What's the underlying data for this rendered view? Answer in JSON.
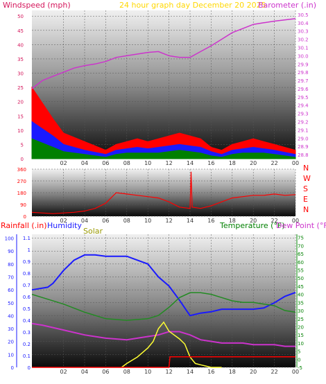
{
  "header": {
    "windspeed_label": "Windspeed (mph)",
    "title": "24 hour graph day   December 20 2025",
    "barometer_label": "Barometer (.in)"
  },
  "compass": [
    "N",
    "W",
    "S",
    "E",
    "N"
  ],
  "bottom_labels": {
    "rainfall": "Rainfall (.in)",
    "humidity": "Humidity",
    "solar": "Solar",
    "temperature": "Temperature (°F)",
    "dewpoint": "Dew Point (°F)"
  },
  "colors": {
    "windspeed_label": "#d4145a",
    "title": "#ffd700",
    "barometer": "#cc33cc",
    "wind_gust": "#ff0000",
    "wind_avg": "#1a1aff",
    "wind_low": "#008000",
    "direction": "#ff0000",
    "humidity": "#1a1aff",
    "temperature": "#228b22",
    "dewpoint": "#cc33cc",
    "solar": "#ffff33",
    "rainfall": "#ff0000",
    "rain_axis": "#1a1aff",
    "temp_axis": "#008000"
  },
  "chart_data": [
    {
      "type": "line",
      "title": "24 hour graph day   December 20 2025",
      "x_ticks": [
        "02",
        "04",
        "06",
        "08",
        "10",
        "12",
        "14",
        "16",
        "18",
        "20",
        "22",
        "00"
      ],
      "y_left_label": "Windspeed (mph)",
      "y_left_ticks": [
        0,
        5,
        10,
        15,
        20,
        25,
        30,
        35,
        40,
        45,
        50
      ],
      "y_right_label": "Barometer (.in)",
      "y_right_ticks": [
        28.8,
        28.9,
        29.0,
        29.1,
        29.2,
        29.3,
        29.4,
        29.5,
        29.6,
        29.7,
        29.8,
        29.9,
        30.0,
        30.1,
        30.2,
        30.3,
        30.4,
        30.5
      ],
      "y_right_range": [
        28.75,
        30.55
      ],
      "grid": true,
      "series": [
        {
          "name": "gust",
          "axis": "left",
          "x": [
            23,
            1,
            2,
            4,
            6,
            7,
            8,
            9,
            10,
            11,
            12,
            13,
            14,
            15,
            16,
            17,
            18,
            19,
            20,
            21,
            22,
            0
          ],
          "values": [
            25,
            14,
            9,
            6,
            3,
            5,
            6,
            7,
            6,
            7,
            8,
            9,
            8,
            7,
            4,
            3,
            5,
            6,
            7,
            6,
            5,
            3
          ]
        },
        {
          "name": "avg",
          "axis": "left",
          "x": [
            23,
            1,
            2,
            4,
            6,
            7,
            8,
            9,
            10,
            11,
            12,
            13,
            14,
            15,
            16,
            17,
            18,
            19,
            20,
            21,
            22,
            0
          ],
          "values": [
            13,
            8,
            5,
            3,
            1.5,
            3,
            3.5,
            4,
            3.5,
            4,
            4.5,
            5,
            4.5,
            4,
            2.5,
            1.5,
            3,
            3.5,
            4,
            3.5,
            3,
            1.5
          ]
        },
        {
          "name": "low",
          "axis": "left",
          "x": [
            23,
            1,
            2,
            4,
            6,
            7,
            8,
            9,
            10,
            11,
            12,
            13,
            14,
            15,
            16,
            17,
            18,
            19,
            20,
            21,
            22,
            0
          ],
          "values": [
            7,
            4,
            2.5,
            1.5,
            0.5,
            1.5,
            2,
            2,
            2,
            2,
            2.5,
            3,
            2.5,
            2,
            1,
            0.5,
            1.5,
            2,
            2,
            2,
            1.5,
            0.5
          ]
        },
        {
          "name": "barometer",
          "axis": "right",
          "x": [
            23,
            0,
            1,
            2,
            3,
            4,
            5,
            6,
            7,
            8,
            9,
            10,
            11,
            12,
            13,
            14,
            15,
            16,
            17,
            18,
            19,
            20,
            21,
            22,
            0
          ],
          "values": [
            29.6,
            29.7,
            29.75,
            29.8,
            29.85,
            29.88,
            29.9,
            29.93,
            29.98,
            30.0,
            30.02,
            30.04,
            30.05,
            30.0,
            29.98,
            29.98,
            30.05,
            30.12,
            30.2,
            30.28,
            30.33,
            30.38,
            30.4,
            30.42,
            30.45
          ]
        }
      ]
    },
    {
      "type": "line",
      "title": "",
      "x_ticks": [
        "02",
        "04",
        "06",
        "08",
        "10",
        "12",
        "14",
        "16",
        "18",
        "20",
        "22",
        "00"
      ],
      "y_ticks": [
        0,
        90,
        180,
        270,
        360
      ],
      "y_range": [
        0,
        360
      ],
      "compass_labels": [
        "N",
        "W",
        "S",
        "E",
        "N"
      ],
      "grid": true,
      "series": [
        {
          "name": "direction",
          "x": [
            23,
            1,
            3,
            4,
            5,
            6,
            7,
            8,
            9,
            10,
            11,
            12,
            13,
            14,
            14.1,
            14.2,
            15,
            16,
            17,
            18,
            19,
            20,
            21,
            22,
            23,
            0
          ],
          "values": [
            30,
            20,
            30,
            40,
            60,
            100,
            180,
            170,
            160,
            150,
            140,
            110,
            70,
            60,
            340,
            70,
            60,
            80,
            110,
            140,
            150,
            160,
            160,
            170,
            160,
            165
          ]
        }
      ]
    },
    {
      "type": "line",
      "title": "",
      "x_ticks": [
        "02",
        "04",
        "06",
        "08",
        "10",
        "12",
        "14",
        "16",
        "18",
        "20",
        "22",
        "00"
      ],
      "y_left_ticks": [
        0,
        10,
        20,
        30,
        40,
        50,
        60,
        70,
        80,
        90,
        100
      ],
      "y_left2_label": "Rainfall (.in)",
      "y_left2_ticks": [
        0,
        0.1,
        0.2,
        0.3,
        0.4,
        0.5,
        0.6,
        0.7,
        0.8,
        0.9,
        1.0,
        1.1
      ],
      "y_right_label": "Temperature (°F)",
      "y_right_ticks": [
        -5,
        0,
        5,
        10,
        15,
        20,
        25,
        30,
        35,
        40,
        45,
        50,
        55,
        60,
        65,
        70,
        75
      ],
      "y_right_range": [
        -5,
        77
      ],
      "grid": true,
      "series": [
        {
          "name": "humidity",
          "axis": "left",
          "x": [
            23,
            0.5,
            1,
            1.5,
            2,
            3,
            4,
            5,
            6,
            7,
            8,
            9,
            10,
            11,
            12,
            13,
            13.5,
            14,
            15,
            16,
            17,
            18,
            19,
            20,
            21,
            22,
            23,
            0
          ],
          "values": [
            60,
            62,
            65,
            70,
            75,
            83,
            87,
            87,
            86,
            86,
            86,
            83,
            80,
            70,
            63,
            52,
            46,
            40,
            42,
            43,
            45,
            45,
            45,
            45,
            46,
            50,
            55,
            58
          ]
        },
        {
          "name": "temperature",
          "axis": "right",
          "x": [
            23,
            0,
            2,
            4,
            6,
            8,
            10,
            11,
            12,
            13,
            14,
            15,
            16,
            17,
            18,
            19,
            20,
            21,
            22,
            23,
            0
          ],
          "values": [
            40,
            38,
            34,
            29,
            25,
            24,
            25,
            27,
            32,
            38,
            41,
            41,
            40,
            38,
            36,
            35,
            35,
            34,
            33,
            30,
            29
          ]
        },
        {
          "name": "dewpoint",
          "axis": "right",
          "x": [
            23,
            0,
            2,
            4,
            6,
            8,
            10,
            11,
            12,
            13,
            14,
            15,
            16,
            17,
            18,
            19,
            20,
            21,
            22,
            23,
            0
          ],
          "values": [
            22,
            21,
            18,
            15,
            13,
            12,
            14,
            15,
            17,
            17,
            15,
            12,
            11,
            10,
            10,
            10,
            9,
            9,
            9,
            8,
            8
          ]
        },
        {
          "name": "solar",
          "axis": "left",
          "x": [
            7.5,
            8,
            9,
            10,
            10.5,
            11,
            11.5,
            12,
            13,
            13.5,
            14,
            14.5,
            15,
            15.5,
            16,
            17
          ],
          "values": [
            0,
            3,
            8,
            15,
            20,
            30,
            35,
            28,
            22,
            18,
            8,
            3,
            2,
            1,
            0,
            0
          ]
        },
        {
          "name": "rainfall",
          "axis": "left2",
          "x": [
            23,
            12,
            12.1,
            15,
            0
          ],
          "values": [
            0,
            0,
            0.09,
            0.09,
            0.09
          ]
        }
      ]
    }
  ]
}
